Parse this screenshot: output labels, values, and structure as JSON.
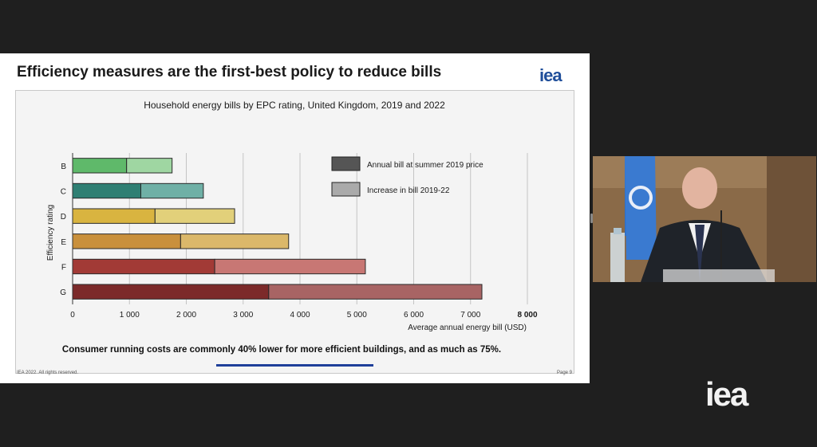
{
  "slide": {
    "title": "Efficiency measures are the first-best policy to reduce bills",
    "logo": "iea",
    "footer_left": "IEA 2022. All rights reserved.",
    "footer_right": "Page 9"
  },
  "chart_data": {
    "type": "bar",
    "orientation": "horizontal",
    "stacked": true,
    "title": "Household energy bills by EPC rating, United Kingdom, 2019 and 2022",
    "xlabel": "Average annual energy bill (USD)",
    "ylabel": "Efficiency rating",
    "xlim": [
      0,
      8000
    ],
    "xticks": [
      0,
      1000,
      2000,
      3000,
      4000,
      5000,
      6000,
      7000,
      8000
    ],
    "xtick_labels": [
      "0",
      "1 000",
      "2 000",
      "3 000",
      "4 000",
      "5 000",
      "6 000",
      "7 000",
      "8 000"
    ],
    "categories": [
      "B",
      "C",
      "D",
      "E",
      "F",
      "G"
    ],
    "series": [
      {
        "name": "Annual bill at summer 2019 price",
        "values": [
          950,
          1200,
          1450,
          1900,
          2500,
          3450
        ]
      },
      {
        "name": "Increase in bill 2019-22",
        "values": [
          800,
          1100,
          1400,
          1900,
          2650,
          3750
        ]
      }
    ],
    "colors": {
      "B": [
        "#5fb96a",
        "#9fd6a2"
      ],
      "C": [
        "#2f7f73",
        "#6fb0a6"
      ],
      "D": [
        "#d9b440",
        "#e2d07a"
      ],
      "E": [
        "#c9903c",
        "#dbb86a"
      ],
      "F": [
        "#a23a36",
        "#c87774"
      ],
      "G": [
        "#7c2a2a",
        "#a86464"
      ]
    },
    "legend": {
      "placement": "top-right",
      "colors": [
        "#555555",
        "#aaaaaa"
      ]
    },
    "grid": "vertical",
    "annotation": "Consumer running costs are commonly 40% lower for more efficient buildings, and as much as 75%."
  },
  "video": {
    "corner_logo": "iea"
  }
}
